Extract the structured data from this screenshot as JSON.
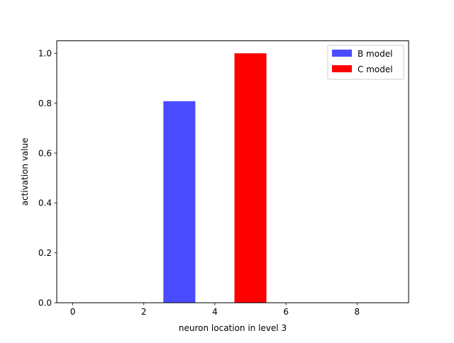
{
  "chart_data": {
    "type": "bar",
    "xlabel": "neuron location in level 3",
    "ylabel": "activation value",
    "xlim": [
      -0.45,
      9.45
    ],
    "ylim": [
      0.0,
      1.05
    ],
    "x_ticks": [
      0,
      2,
      4,
      6,
      8
    ],
    "x_tick_labels": [
      "0",
      "2",
      "4",
      "6",
      "8"
    ],
    "y_ticks": [
      0.0,
      0.2,
      0.4,
      0.6,
      0.8,
      1.0
    ],
    "y_tick_labels": [
      "0.0",
      "0.2",
      "0.4",
      "0.6",
      "0.8",
      "1.0"
    ],
    "grid": false,
    "legend_position": "top-right",
    "x": [
      0,
      1,
      2,
      3,
      4,
      5,
      6,
      7,
      8,
      9
    ],
    "bar_width": 0.9,
    "series": [
      {
        "name": "B model",
        "color": "#4c4cff",
        "values": [
          0,
          0,
          0,
          0.808,
          0,
          0,
          0,
          0,
          0,
          0
        ]
      },
      {
        "name": "C model",
        "color": "#ff0000",
        "values": [
          0,
          0,
          0,
          0,
          0,
          1.0,
          0,
          0,
          0,
          0
        ]
      }
    ]
  }
}
